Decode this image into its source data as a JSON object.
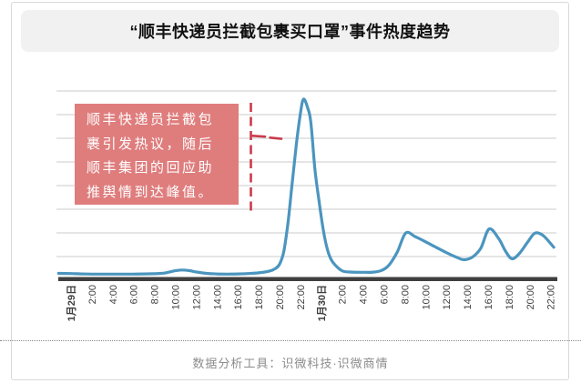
{
  "header": {
    "title": "“顺丰快递员拦截包裹买口罩”事件热度趋势"
  },
  "annotation": {
    "text": "顺丰快递员拦截包\n裹引发热议，随后\n顺丰集团的回应助\n推舆情到达峰值。"
  },
  "footer": {
    "text": "数据分析工具：识微科技·识微商情"
  },
  "colors": {
    "line": "#4b95bf",
    "annotation_bg": "#df7d7d",
    "annotation_dash": "#cb3a4a",
    "grid": "#cbcbcb",
    "axis": "#3f3f3f",
    "header_bg": "#f1f1f1",
    "tick_text": "#3d3d3d",
    "footer_text": "#8c8c8c",
    "card_border": "#d9d9d9",
    "title_text": "#111111"
  },
  "chart_data": {
    "type": "line",
    "title": "“顺丰快递员拦截包裹买口罩”事件热度趋势",
    "xlabel": "",
    "ylabel": "",
    "y_axis_labels_visible": false,
    "y_scale_note": "relative heat, 0 = baseline, 100 = peak (no numeric axis shown)",
    "ylim": [
      0,
      100
    ],
    "grid": "horizontal-only",
    "legend": "none",
    "x_tick_labels": [
      "1月29日",
      "2:00",
      "4:00",
      "6:00",
      "8:00",
      "10:00",
      "12:00",
      "14:00",
      "16:00",
      "18:00",
      "20:00",
      "22:00",
      "1月30日",
      "2:00",
      "4:00",
      "6:00",
      "8:00",
      "10:00",
      "12:00",
      "14:00",
      "16:00",
      "18:00",
      "20:00",
      "22:00"
    ],
    "x_bold_ticks": [
      0,
      12
    ],
    "hours_per_tick": 2,
    "series": [
      {
        "name": "事件热度",
        "color": "#4b95bf",
        "points_hour_value": [
          [
            -1.2,
            1.8
          ],
          [
            0,
            1.7
          ],
          [
            1,
            1.5
          ],
          [
            2,
            1.4
          ],
          [
            3,
            1.4
          ],
          [
            4,
            1.4
          ],
          [
            5,
            1.4
          ],
          [
            6,
            1.4
          ],
          [
            7,
            1.5
          ],
          [
            8,
            1.6
          ],
          [
            9,
            2
          ],
          [
            10,
            3.3
          ],
          [
            10.6,
            3.7
          ],
          [
            11.3,
            3.4
          ],
          [
            12,
            2.6
          ],
          [
            13,
            1.8
          ],
          [
            14,
            1.5
          ],
          [
            15,
            1.4
          ],
          [
            16,
            1.5
          ],
          [
            17,
            1.7
          ],
          [
            18,
            2.1
          ],
          [
            19,
            3
          ],
          [
            19.6,
            4.5
          ],
          [
            20,
            7
          ],
          [
            20.4,
            14
          ],
          [
            20.8,
            30
          ],
          [
            21.2,
            52
          ],
          [
            21.6,
            74
          ],
          [
            22,
            92
          ],
          [
            22.3,
            100
          ],
          [
            22.7,
            95
          ],
          [
            23,
            87
          ],
          [
            23.4,
            60
          ],
          [
            23.8,
            42
          ],
          [
            24.2,
            26
          ],
          [
            24.6,
            15
          ],
          [
            25,
            9
          ],
          [
            25.5,
            5.5
          ],
          [
            26.1,
            3
          ],
          [
            27,
            2.5
          ],
          [
            28,
            2.4
          ],
          [
            29,
            2.5
          ],
          [
            29.8,
            3.5
          ],
          [
            30.5,
            6.5
          ],
          [
            31.3,
            14
          ],
          [
            32.1,
            24.5
          ],
          [
            33,
            22.5
          ],
          [
            34,
            19.6
          ],
          [
            35,
            16.5
          ],
          [
            36,
            13.5
          ],
          [
            37,
            10.8
          ],
          [
            37.7,
            9.5
          ],
          [
            38.5,
            11
          ],
          [
            39.3,
            16
          ],
          [
            40.1,
            26.8
          ],
          [
            41,
            21.5
          ],
          [
            41.7,
            14
          ],
          [
            42.3,
            10
          ],
          [
            43,
            13
          ],
          [
            43.8,
            19.5
          ],
          [
            44.5,
            24.5
          ],
          [
            45.3,
            23
          ],
          [
            46.3,
            16.5
          ]
        ]
      }
    ],
    "annotations": [
      {
        "text": "顺丰快递员拦截包裹引发热议，随后顺丰集团的回应助推舆情到达峰值。",
        "style": "red dashed pointer toward the 1月29日 ~22:00 peak"
      }
    ]
  }
}
